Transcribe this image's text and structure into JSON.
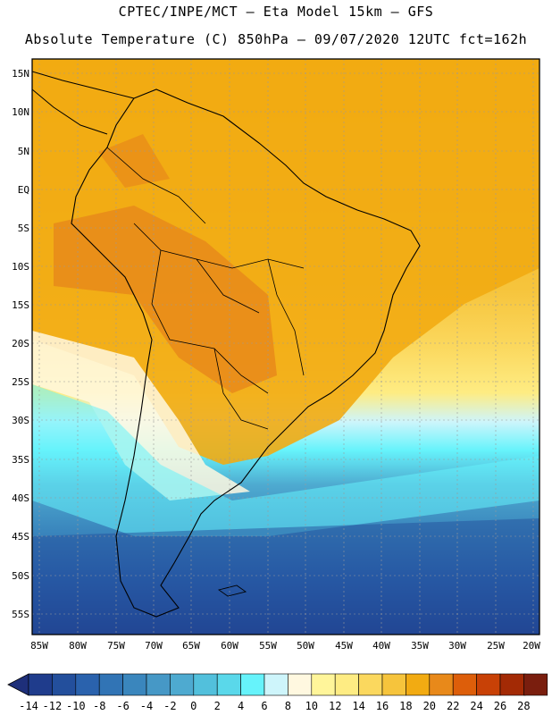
{
  "header": {
    "line1": "CPTEC/INPE/MCT –  Eta Model 15km – GFS",
    "line2": "Absolute Temperature (C) 850hPa – 09/07/2020 12UTC fct=162h"
  },
  "axes": {
    "lat_labels": [
      "15N",
      "10N",
      "5N",
      "EQ",
      "5S",
      "10S",
      "15S",
      "20S",
      "25S",
      "30S",
      "35S",
      "40S",
      "45S",
      "50S",
      "55S"
    ],
    "lon_labels": [
      "85W",
      "80W",
      "75W",
      "70W",
      "65W",
      "60W",
      "55W",
      "50W",
      "45W",
      "40W",
      "35W",
      "30W",
      "25W",
      "20W"
    ]
  },
  "colorbar": {
    "ticks": [
      "-14",
      "-12",
      "-10",
      "-8",
      "-6",
      "-4",
      "-2",
      "0",
      "2",
      "4",
      "6",
      "8",
      "10",
      "12",
      "14",
      "16",
      "18",
      "20",
      "22",
      "24",
      "26",
      "28"
    ],
    "colors": [
      "#1f3c8c",
      "#234f9c",
      "#2a62ad",
      "#3174b5",
      "#3a86bd",
      "#4698c6",
      "#4eaad0",
      "#52c0dc",
      "#5ad8ea",
      "#66f3fb",
      "#cef5fb",
      "#fff8e0",
      "#fff59a",
      "#feec83",
      "#fbd85e",
      "#f6c43c",
      "#f2ab12",
      "#e8891a",
      "#dd5e0a",
      "#c84106",
      "#a32a05",
      "#7a1e0e"
    ],
    "under_color": "#1e2f7a",
    "over_color": "#7a0a1e"
  }
}
